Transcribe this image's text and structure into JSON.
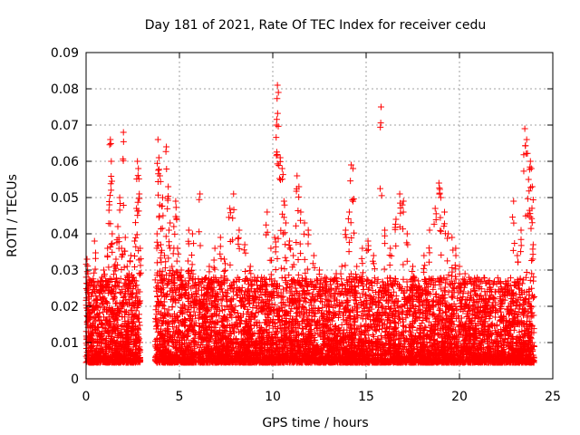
{
  "chart_data": {
    "type": "scatter",
    "title": "Day 181 of 2021, Rate Of TEC Index for receiver cedu",
    "xlabel": "GPS time / hours",
    "ylabel": "ROTI / TECUs",
    "xlim": [
      0,
      25
    ],
    "ylim": [
      0,
      0.09
    ],
    "x_ticks": [
      0,
      5,
      10,
      15,
      20,
      25
    ],
    "y_ticks": [
      0,
      0.01,
      0.02,
      0.03,
      0.04,
      0.05,
      0.06,
      0.07,
      0.08,
      0.09
    ],
    "x_tick_labels": [
      "0",
      "5",
      "10",
      "15",
      "20",
      "25"
    ],
    "y_tick_labels": [
      "0",
      "0.01",
      "0.02",
      "0.03",
      "0.04",
      "0.05",
      "0.06",
      "0.07",
      "0.08",
      "0.09"
    ],
    "grid": true,
    "marker": "plus",
    "color": "#ff0000",
    "points": [
      [
        0.05,
        0.033
      ],
      [
        0.1,
        0.029
      ],
      [
        0.15,
        0.022
      ],
      [
        0.2,
        0.018
      ],
      [
        0.25,
        0.012
      ],
      [
        0.3,
        0.009
      ],
      [
        0.35,
        0.015
      ],
      [
        0.4,
        0.02
      ],
      [
        0.45,
        0.038
      ],
      [
        0.55,
        0.021
      ],
      [
        0.65,
        0.017
      ],
      [
        0.75,
        0.026
      ],
      [
        0.85,
        0.028
      ],
      [
        0.95,
        0.03
      ],
      [
        1.05,
        0.027
      ],
      [
        1.15,
        0.036
      ],
      [
        1.25,
        0.048
      ],
      [
        1.3,
        0.066
      ],
      [
        1.35,
        0.06
      ],
      [
        1.4,
        0.04
      ],
      [
        1.5,
        0.031
      ],
      [
        1.6,
        0.033
      ],
      [
        1.7,
        0.042
      ],
      [
        1.8,
        0.05
      ],
      [
        1.9,
        0.036
      ],
      [
        2.0,
        0.068
      ],
      [
        2.1,
        0.039
      ],
      [
        2.2,
        0.031
      ],
      [
        2.3,
        0.029
      ],
      [
        2.4,
        0.034
      ],
      [
        2.5,
        0.027
      ],
      [
        2.6,
        0.038
      ],
      [
        2.7,
        0.047
      ],
      [
        2.75,
        0.06
      ],
      [
        2.8,
        0.058
      ],
      [
        2.85,
        0.051
      ],
      [
        2.9,
        0.036
      ],
      [
        3.8,
        0.04
      ],
      [
        3.85,
        0.066
      ],
      [
        3.9,
        0.061
      ],
      [
        3.95,
        0.056
      ],
      [
        4.0,
        0.037
      ],
      [
        4.1,
        0.05
      ],
      [
        4.2,
        0.034
      ],
      [
        4.3,
        0.064
      ],
      [
        4.4,
        0.053
      ],
      [
        4.5,
        0.043
      ],
      [
        4.6,
        0.031
      ],
      [
        4.7,
        0.042
      ],
      [
        4.8,
        0.049
      ],
      [
        4.9,
        0.036
      ],
      [
        5.1,
        0.03
      ],
      [
        5.3,
        0.027
      ],
      [
        5.5,
        0.041
      ],
      [
        5.7,
        0.04
      ],
      [
        5.9,
        0.025
      ],
      [
        6.1,
        0.051
      ],
      [
        6.3,
        0.022
      ],
      [
        6.6,
        0.031
      ],
      [
        6.9,
        0.036
      ],
      [
        7.2,
        0.039
      ],
      [
        7.4,
        0.033
      ],
      [
        7.7,
        0.047
      ],
      [
        7.9,
        0.051
      ],
      [
        8.2,
        0.041
      ],
      [
        8.5,
        0.037
      ],
      [
        8.8,
        0.031
      ],
      [
        9.1,
        0.024
      ],
      [
        9.4,
        0.028
      ],
      [
        9.7,
        0.046
      ],
      [
        9.9,
        0.036
      ],
      [
        10.1,
        0.039
      ],
      [
        10.2,
        0.07
      ],
      [
        10.25,
        0.081
      ],
      [
        10.3,
        0.079
      ],
      [
        10.4,
        0.061
      ],
      [
        10.5,
        0.058
      ],
      [
        10.6,
        0.049
      ],
      [
        10.7,
        0.043
      ],
      [
        10.9,
        0.038
      ],
      [
        11.1,
        0.034
      ],
      [
        11.3,
        0.056
      ],
      [
        11.4,
        0.053
      ],
      [
        11.5,
        0.046
      ],
      [
        11.7,
        0.043
      ],
      [
        11.9,
        0.041
      ],
      [
        12.2,
        0.034
      ],
      [
        12.5,
        0.03
      ],
      [
        12.8,
        0.028
      ],
      [
        13.1,
        0.026
      ],
      [
        13.4,
        0.029
      ],
      [
        13.7,
        0.031
      ],
      [
        13.9,
        0.041
      ],
      [
        14.1,
        0.046
      ],
      [
        14.2,
        0.059
      ],
      [
        14.3,
        0.058
      ],
      [
        14.5,
        0.031
      ],
      [
        14.8,
        0.036
      ],
      [
        15.1,
        0.038
      ],
      [
        15.4,
        0.034
      ],
      [
        15.8,
        0.075
      ],
      [
        16.0,
        0.041
      ],
      [
        16.3,
        0.036
      ],
      [
        16.6,
        0.044
      ],
      [
        16.8,
        0.051
      ],
      [
        17.0,
        0.049
      ],
      [
        17.2,
        0.04
      ],
      [
        17.5,
        0.031
      ],
      [
        17.8,
        0.027
      ],
      [
        18.1,
        0.034
      ],
      [
        18.4,
        0.041
      ],
      [
        18.7,
        0.047
      ],
      [
        18.9,
        0.054
      ],
      [
        19.0,
        0.05
      ],
      [
        19.2,
        0.046
      ],
      [
        19.4,
        0.04
      ],
      [
        19.6,
        0.039
      ],
      [
        19.8,
        0.036
      ],
      [
        20.0,
        0.031
      ],
      [
        20.3,
        0.029
      ],
      [
        20.6,
        0.024
      ],
      [
        21.0,
        0.019
      ],
      [
        21.4,
        0.023
      ],
      [
        21.8,
        0.021
      ],
      [
        22.2,
        0.017
      ],
      [
        22.6,
        0.027
      ],
      [
        22.9,
        0.049
      ],
      [
        23.1,
        0.034
      ],
      [
        23.3,
        0.041
      ],
      [
        23.5,
        0.069
      ],
      [
        23.6,
        0.066
      ],
      [
        23.7,
        0.055
      ],
      [
        23.8,
        0.06
      ],
      [
        23.85,
        0.058
      ],
      [
        23.9,
        0.053
      ],
      [
        23.95,
        0.037
      ]
    ],
    "density_bands": [
      {
        "x": [
          0.0,
          2.9
        ],
        "y": [
          0.0045,
          0.028
        ]
      },
      {
        "x": [
          3.7,
          5.9
        ],
        "y": [
          0.0045,
          0.03
        ]
      },
      {
        "x": [
          6.0,
          24.0
        ],
        "y": [
          0.0045,
          0.028
        ]
      }
    ]
  }
}
